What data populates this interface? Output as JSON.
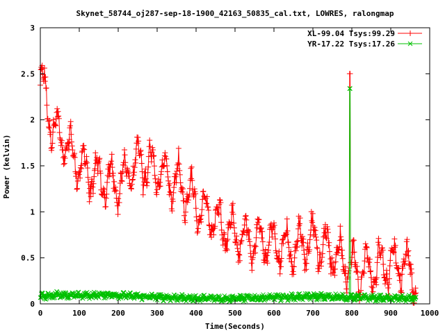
{
  "chart_data": {
    "type": "scatter",
    "title": "Skynet_58744_oj287-sep-18-1900_42163_50835_cal.txt, LOWRES, ralongmap",
    "xlabel": "Time(Seconds)",
    "ylabel": "Power (kelvin)",
    "xlim": [
      0,
      1000
    ],
    "ylim": [
      0,
      3
    ],
    "xticks": [
      0,
      100,
      200,
      300,
      400,
      500,
      600,
      700,
      800,
      900,
      1000
    ],
    "xtick_labels": [
      "0",
      "100",
      "200",
      "300",
      "400",
      "500",
      "600",
      "700",
      "800",
      "900",
      "1000"
    ],
    "yticks": [
      0,
      0.5,
      1,
      1.5,
      2,
      2.5,
      3
    ],
    "ytick_labels": [
      "0",
      "0.5",
      "1",
      "1.5",
      "2",
      "2.5",
      "3"
    ],
    "grid": false,
    "legend": "top-right",
    "series": [
      {
        "name": "XL-99.04 Tsys:99.29",
        "color": "#ff0000",
        "marker": "plus",
        "line_style": "points-with-steps",
        "trend": [
          [
            0,
            2.4
          ],
          [
            10,
            2.3
          ],
          [
            30,
            1.95
          ],
          [
            60,
            1.75
          ],
          [
            100,
            1.5
          ],
          [
            150,
            1.35
          ],
          [
            200,
            1.3
          ],
          [
            250,
            1.55
          ],
          [
            300,
            1.45
          ],
          [
            350,
            1.3
          ],
          [
            400,
            1.1
          ],
          [
            450,
            0.9
          ],
          [
            500,
            0.75
          ],
          [
            550,
            0.7
          ],
          [
            600,
            0.65
          ],
          [
            650,
            0.6
          ],
          [
            700,
            0.7
          ],
          [
            750,
            0.55
          ],
          [
            800,
            0.4
          ],
          [
            850,
            0.35
          ],
          [
            900,
            0.45
          ],
          [
            950,
            0.4
          ],
          [
            965,
            0.2
          ]
        ],
        "spike": {
          "x": 795,
          "y": 2.5
        },
        "x_range": [
          0,
          965
        ]
      },
      {
        "name": "YR-17.22 Tsys:17.26",
        "color": "#00c000",
        "marker": "cross",
        "line_style": "points-with-steps",
        "trend": [
          [
            0,
            0.08
          ],
          [
            50,
            0.1
          ],
          [
            100,
            0.09
          ],
          [
            180,
            0.1
          ],
          [
            250,
            0.08
          ],
          [
            400,
            0.06
          ],
          [
            500,
            0.06
          ],
          [
            600,
            0.07
          ],
          [
            700,
            0.08
          ],
          [
            800,
            0.07
          ],
          [
            900,
            0.06
          ],
          [
            965,
            0.06
          ]
        ],
        "spike": {
          "x": 795,
          "y": 2.34
        },
        "x_range": [
          0,
          965
        ]
      }
    ]
  }
}
